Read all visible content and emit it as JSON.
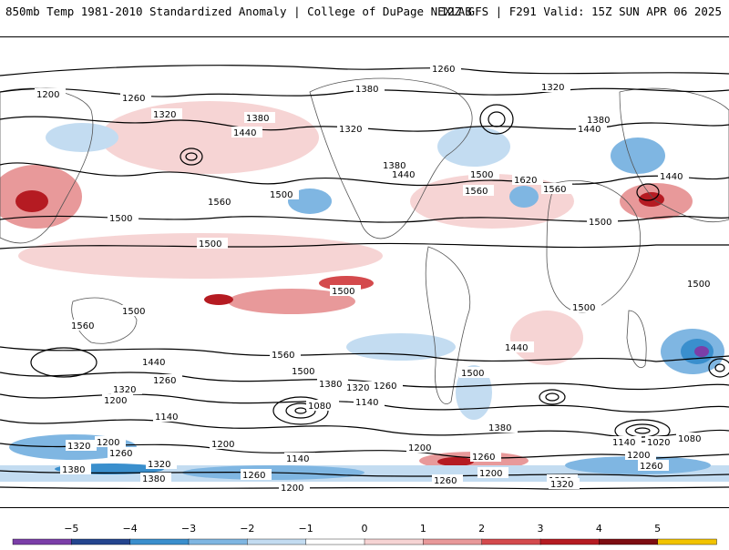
{
  "header": {
    "title": "850mb Temp 1981-2010 Standardized Anomaly | College of DuPage NEXLAB",
    "run_info": "12Z GFS | F291 Valid: 15Z SUN APR 06 2025"
  },
  "contour_labels": [
    "1260",
    "1380",
    "1320",
    "1200",
    "1260",
    "1320",
    "1380",
    "1440",
    "1320",
    "1380",
    "1440",
    "1500",
    "1560",
    "1620",
    "1560",
    "1380",
    "1440",
    "1500",
    "1440",
    "1500",
    "1560",
    "1500",
    "1500",
    "1500",
    "1500",
    "1500",
    "1500",
    "1560",
    "1560",
    "1440",
    "1500",
    "1380",
    "1320",
    "1260",
    "1200",
    "1140",
    "1080",
    "1140",
    "1260",
    "1320",
    "1200",
    "1440",
    "1500",
    "1380",
    "1260",
    "1200",
    "1140",
    "1080",
    "1020",
    "1080",
    "1200",
    "1260",
    "1320",
    "1200",
    "1140",
    "1260",
    "1380",
    "1320",
    "1380",
    "1260",
    "1200",
    "1320",
    "1260",
    "1200",
    "1320"
  ],
  "colorbar": {
    "ticks": [
      "−5",
      "−4",
      "−3",
      "−2",
      "−1",
      "0",
      "1",
      "2",
      "3",
      "4",
      "5"
    ],
    "colors": [
      "#7b3ea8",
      "#24458f",
      "#3a8fcd",
      "#7fb6e2",
      "#c3dcf1",
      "#ffffff",
      "#f6d4d4",
      "#e8999a",
      "#d44a4d",
      "#b51b22",
      "#7d0d12",
      "#f2c400"
    ]
  },
  "colors": {
    "land_outline": "#555555",
    "contour": "#000000"
  }
}
